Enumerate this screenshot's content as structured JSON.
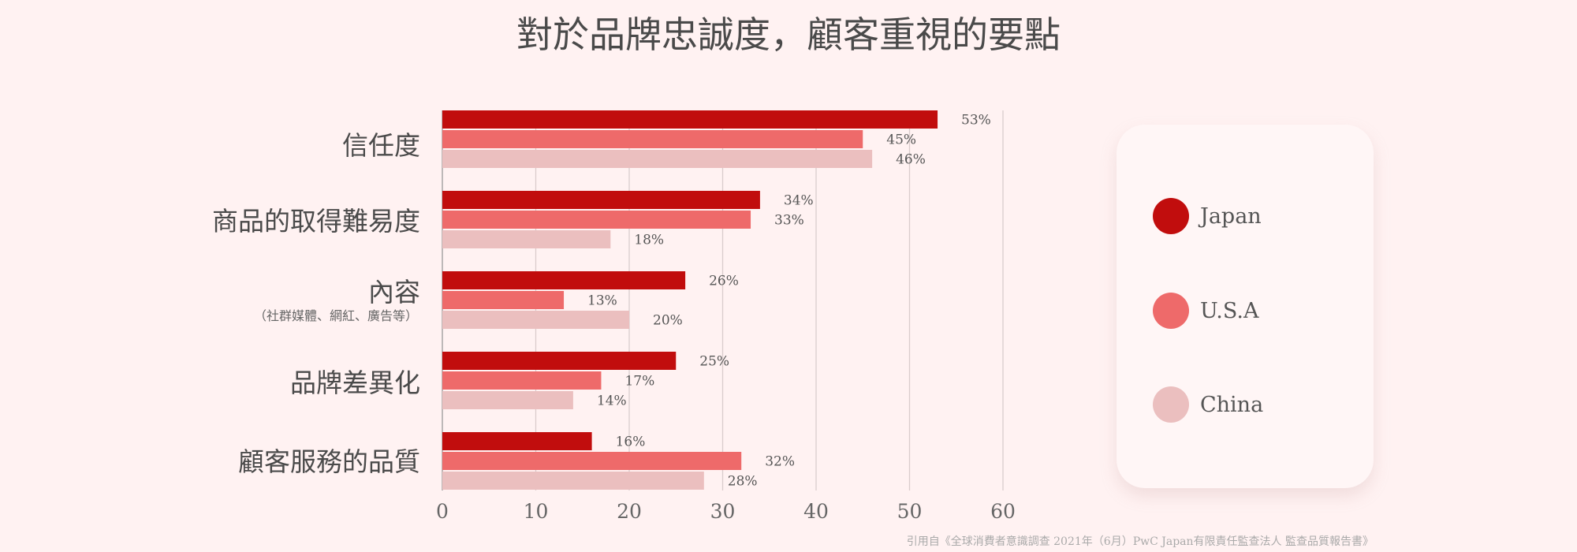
{
  "title": "對於品牌忠誠度，顧客重視的要點",
  "source": "引用自《全球消費者意識調查 2021年（6月）PwC Japan有限責任監查法人 監查品質報告書》",
  "chart_data": {
    "type": "bar",
    "orientation": "horizontal",
    "title": "對於品牌忠誠度，顧客重視的要點",
    "categories": [
      "信任度",
      "商品的取得難易度",
      "內容",
      "品牌差異化",
      "顧客服務的品質"
    ],
    "category_subtitles": [
      "",
      "",
      "（社群媒體、網紅、廣告等）",
      "",
      ""
    ],
    "series": [
      {
        "name": "Japan",
        "color": "#c10d0d",
        "values": [
          53,
          34,
          26,
          25,
          16
        ],
        "labels": [
          "53%",
          "34%",
          "26%",
          "25%",
          "16%"
        ]
      },
      {
        "name": "U.S.A",
        "color": "#ee6a6a",
        "values": [
          45,
          33,
          13,
          17,
          32
        ],
        "labels": [
          "45%",
          "33%",
          "13%",
          "17%",
          "32%"
        ]
      },
      {
        "name": "China",
        "color": "#ebbfbf",
        "values": [
          46,
          18,
          20,
          14,
          28
        ],
        "labels": [
          "46%",
          "18%",
          "20%",
          "14%",
          "28%"
        ]
      }
    ],
    "xlim": [
      0,
      60
    ],
    "xticks": [
      "0",
      "10",
      "20",
      "30",
      "40",
      "50",
      "60"
    ],
    "grid": true,
    "legend": "right"
  }
}
